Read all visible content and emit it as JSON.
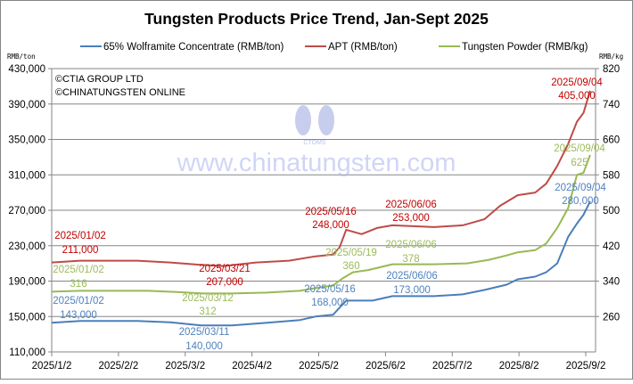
{
  "chart_data": {
    "type": "line",
    "title": "Tungsten Products Price Trend, Jan-Sept 2025",
    "copyright": [
      "©CTIA GROUP LTD",
      "©CHINATUNGSTEN ONLINE"
    ],
    "watermark": {
      "logo_text": "CTOMS",
      "url_text": "www.chinatungsten.com"
    },
    "left_axis": {
      "unit": "RMB/ton",
      "range": [
        110000,
        430000
      ],
      "ticks": [
        "430,000",
        "390,000",
        "350,000",
        "310,000",
        "270,000",
        "230,000",
        "190,000",
        "150,000",
        "110,000"
      ]
    },
    "right_axis": {
      "unit": "RMB/kg",
      "range": [
        180,
        820
      ],
      "ticks": [
        "820",
        "740",
        "660",
        "580",
        "500",
        "420",
        "340",
        "260"
      ]
    },
    "x_axis": {
      "range": [
        "2025-01-02",
        "2025-09-04"
      ],
      "ticks": [
        "2025/1/2",
        "2025/2/2",
        "2025/3/2",
        "2025/4/2",
        "2025/5/2",
        "2025/6/2",
        "2025/7/2",
        "2025/8/2",
        "2025/9/2"
      ]
    },
    "grid": true,
    "legend_position": "top",
    "series": [
      {
        "name": "65% Wolframite Concentrate (RMB/ton)",
        "axis": "left",
        "color": "#4a7ebb",
        "points": [
          [
            "2025-01-02",
            143000
          ],
          [
            "2025-01-15",
            145000
          ],
          [
            "2025-02-10",
            145000
          ],
          [
            "2025-02-25",
            143500
          ],
          [
            "2025-03-11",
            140000
          ],
          [
            "2025-03-25",
            140000
          ],
          [
            "2025-04-10",
            143000
          ],
          [
            "2025-04-25",
            146000
          ],
          [
            "2025-05-02",
            150000
          ],
          [
            "2025-05-10",
            152000
          ],
          [
            "2025-05-13",
            160000
          ],
          [
            "2025-05-16",
            168000
          ],
          [
            "2025-05-28",
            168000
          ],
          [
            "2025-06-06",
            173000
          ],
          [
            "2025-06-25",
            173000
          ],
          [
            "2025-07-08",
            175000
          ],
          [
            "2025-07-18",
            180000
          ],
          [
            "2025-07-28",
            186000
          ],
          [
            "2025-08-02",
            192000
          ],
          [
            "2025-08-10",
            195000
          ],
          [
            "2025-08-15",
            200000
          ],
          [
            "2025-08-20",
            210000
          ],
          [
            "2025-08-25",
            240000
          ],
          [
            "2025-08-29",
            255000
          ],
          [
            "2025-09-01",
            265000
          ],
          [
            "2025-09-04",
            280000
          ]
        ]
      },
      {
        "name": "APT (RMB/ton)",
        "axis": "left",
        "color": "#be4b48",
        "points": [
          [
            "2025-01-02",
            211000
          ],
          [
            "2025-01-15",
            213000
          ],
          [
            "2025-02-10",
            213000
          ],
          [
            "2025-02-25",
            211000
          ],
          [
            "2025-03-10",
            208500
          ],
          [
            "2025-03-21",
            207000
          ],
          [
            "2025-04-05",
            211000
          ],
          [
            "2025-04-20",
            213000
          ],
          [
            "2025-05-02",
            218000
          ],
          [
            "2025-05-10",
            220000
          ],
          [
            "2025-05-13",
            228000
          ],
          [
            "2025-05-16",
            248000
          ],
          [
            "2025-05-23",
            243000
          ],
          [
            "2025-05-30",
            250000
          ],
          [
            "2025-06-06",
            253000
          ],
          [
            "2025-06-25",
            251000
          ],
          [
            "2025-07-08",
            253000
          ],
          [
            "2025-07-18",
            260000
          ],
          [
            "2025-07-25",
            275000
          ],
          [
            "2025-08-02",
            287000
          ],
          [
            "2025-08-10",
            290000
          ],
          [
            "2025-08-15",
            300000
          ],
          [
            "2025-08-20",
            320000
          ],
          [
            "2025-08-25",
            345000
          ],
          [
            "2025-08-29",
            370000
          ],
          [
            "2025-09-01",
            380000
          ],
          [
            "2025-09-04",
            405000
          ]
        ]
      },
      {
        "name": "Tungsten Powder (RMB/kg)",
        "axis": "right",
        "color": "#98b954",
        "points": [
          [
            "2025-01-02",
            316
          ],
          [
            "2025-01-15",
            318
          ],
          [
            "2025-02-15",
            318
          ],
          [
            "2025-03-01",
            315
          ],
          [
            "2025-03-12",
            312
          ],
          [
            "2025-03-25",
            312
          ],
          [
            "2025-04-10",
            314
          ],
          [
            "2025-04-25",
            318
          ],
          [
            "2025-05-02",
            324
          ],
          [
            "2025-05-10",
            330
          ],
          [
            "2025-05-14",
            345
          ],
          [
            "2025-05-19",
            360
          ],
          [
            "2025-05-26",
            365
          ],
          [
            "2025-06-06",
            378
          ],
          [
            "2025-06-25",
            378
          ],
          [
            "2025-07-10",
            380
          ],
          [
            "2025-07-20",
            388
          ],
          [
            "2025-07-28",
            398
          ],
          [
            "2025-08-02",
            405
          ],
          [
            "2025-08-10",
            410
          ],
          [
            "2025-08-15",
            425
          ],
          [
            "2025-08-20",
            460
          ],
          [
            "2025-08-25",
            505
          ],
          [
            "2025-08-29",
            580
          ],
          [
            "2025-09-01",
            585
          ],
          [
            "2025-09-04",
            625
          ]
        ]
      }
    ],
    "annotations": [
      {
        "series": 1,
        "date": "2025/01/02",
        "value": "211,000"
      },
      {
        "series": 1,
        "date": "2025/03/21",
        "value": "207,000"
      },
      {
        "series": 1,
        "date": "2025/05/16",
        "value": "248,000"
      },
      {
        "series": 1,
        "date": "2025/06/06",
        "value": "253,000"
      },
      {
        "series": 1,
        "date": "2025/09/04",
        "value": "405,000"
      },
      {
        "series": 0,
        "date": "2025/01/02",
        "value": "143,000"
      },
      {
        "series": 0,
        "date": "2025/03/11",
        "value": "140,000"
      },
      {
        "series": 0,
        "date": "2025/05/16",
        "value": "168,000"
      },
      {
        "series": 0,
        "date": "2025/06/06",
        "value": "173,000"
      },
      {
        "series": 0,
        "date": "2025/09/04",
        "value": "280,000"
      },
      {
        "series": 2,
        "date": "2025/01/02",
        "value": "316"
      },
      {
        "series": 2,
        "date": "2025/03/12",
        "value": "312"
      },
      {
        "series": 2,
        "date": "2025/05/19",
        "value": "360"
      },
      {
        "series": 2,
        "date": "2025/06/06",
        "value": "378"
      },
      {
        "series": 2,
        "date": "2025/09/04",
        "value": "625"
      }
    ],
    "annotation_colors": [
      "#4f81bd",
      "#c00000",
      "#9bbb59"
    ]
  }
}
